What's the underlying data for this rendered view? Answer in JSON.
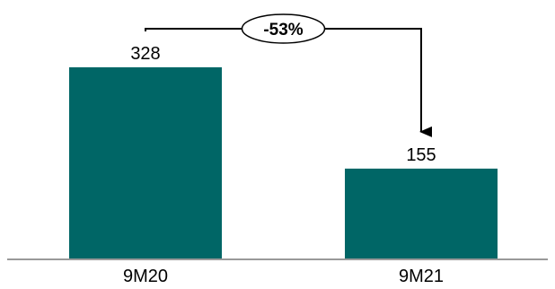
{
  "chart_data": {
    "type": "bar",
    "categories": [
      "9M20",
      "9M21"
    ],
    "values": [
      328,
      155
    ],
    "value_labels": [
      "328",
      "155"
    ],
    "bar_color": "#006666",
    "axis_color": "#999999",
    "title": "",
    "xlabel": "",
    "ylabel": "",
    "ylim": [
      0,
      400
    ],
    "grid": false,
    "legend": "none",
    "annotation": {
      "label": "-53%",
      "from_category": "9M20",
      "to_category": "9M21"
    }
  }
}
